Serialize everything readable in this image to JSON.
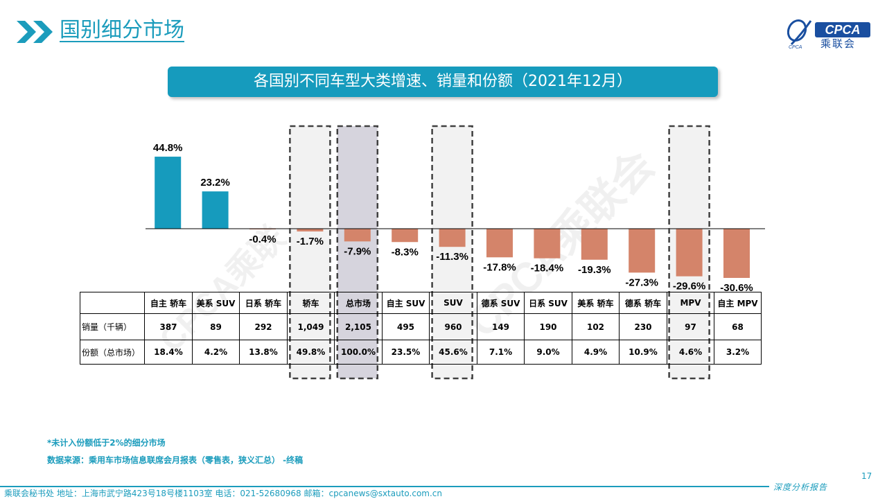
{
  "header": {
    "title": "国别细分市场",
    "logo_text": "CPCA",
    "logo_cn": "乘联会",
    "logo_small": "CPCA"
  },
  "banner": {
    "text": "各国别不同车型大类增速、销量和份额（2021年12月）"
  },
  "colors": {
    "accent": "#1b9cbc",
    "positive": "#169bbd",
    "negative": "#d4846a",
    "highlight": "#d6d4dd"
  },
  "chart_data": {
    "type": "bar",
    "title": "各国别不同车型大类增速、销量和份额（2021年12月）",
    "categories": [
      "自主 轿车",
      "美系 SUV",
      "日系 轿车",
      "轿车",
      "总市场",
      "自主 SUV",
      "SUV",
      "德系 SUV",
      "日系 SUV",
      "美系 轿车",
      "德系 轿车",
      "MPV",
      "自主 MPV"
    ],
    "values": [
      44.8,
      23.2,
      -0.4,
      -1.7,
      -7.9,
      -8.3,
      -11.3,
      -17.8,
      -18.4,
      -19.3,
      -27.3,
      -29.6,
      -30.6
    ],
    "value_labels": [
      "44.8%",
      "23.2%",
      "-0.4%",
      "-1.7%",
      "-7.9%",
      "-8.3%",
      "-11.3%",
      "-17.8%",
      "-18.4%",
      "-19.3%",
      "-27.3%",
      "-29.6%",
      "-30.6%"
    ],
    "ylabel": "",
    "unit": "%",
    "grid": false,
    "highlighted": [
      "轿车",
      "总市场",
      "SUV",
      "MPV"
    ],
    "emphasized": "总市场"
  },
  "table": {
    "row_labels": [
      "销量（千辆）",
      "份额（总市场）"
    ],
    "sales": [
      "387",
      "89",
      "292",
      "1,049",
      "2,105",
      "495",
      "960",
      "149",
      "190",
      "102",
      "230",
      "97",
      "68"
    ],
    "shares": [
      "18.4%",
      "4.2%",
      "13.8%",
      "49.8%",
      "100.0%",
      "23.5%",
      "45.6%",
      "7.1%",
      "9.0%",
      "4.9%",
      "10.9%",
      "4.6%",
      "3.2%"
    ]
  },
  "watermark": [
    "CPCA乘联",
    "CPCA乘联会"
  ],
  "notes": {
    "note1": "*未计入份额低于2%的细分市场",
    "note2": "数据来源：乘用车市场信息联席会月报表（零售表，狭义汇总）  -终稿"
  },
  "footer": {
    "text": "乘联会秘书处    地址：上海市武宁路423号18号楼1103室    电话：021-52680968    邮箱：cpcanews@sxtauto.com.cn",
    "report_tag": "深度分析报告",
    "page_number": "17"
  }
}
